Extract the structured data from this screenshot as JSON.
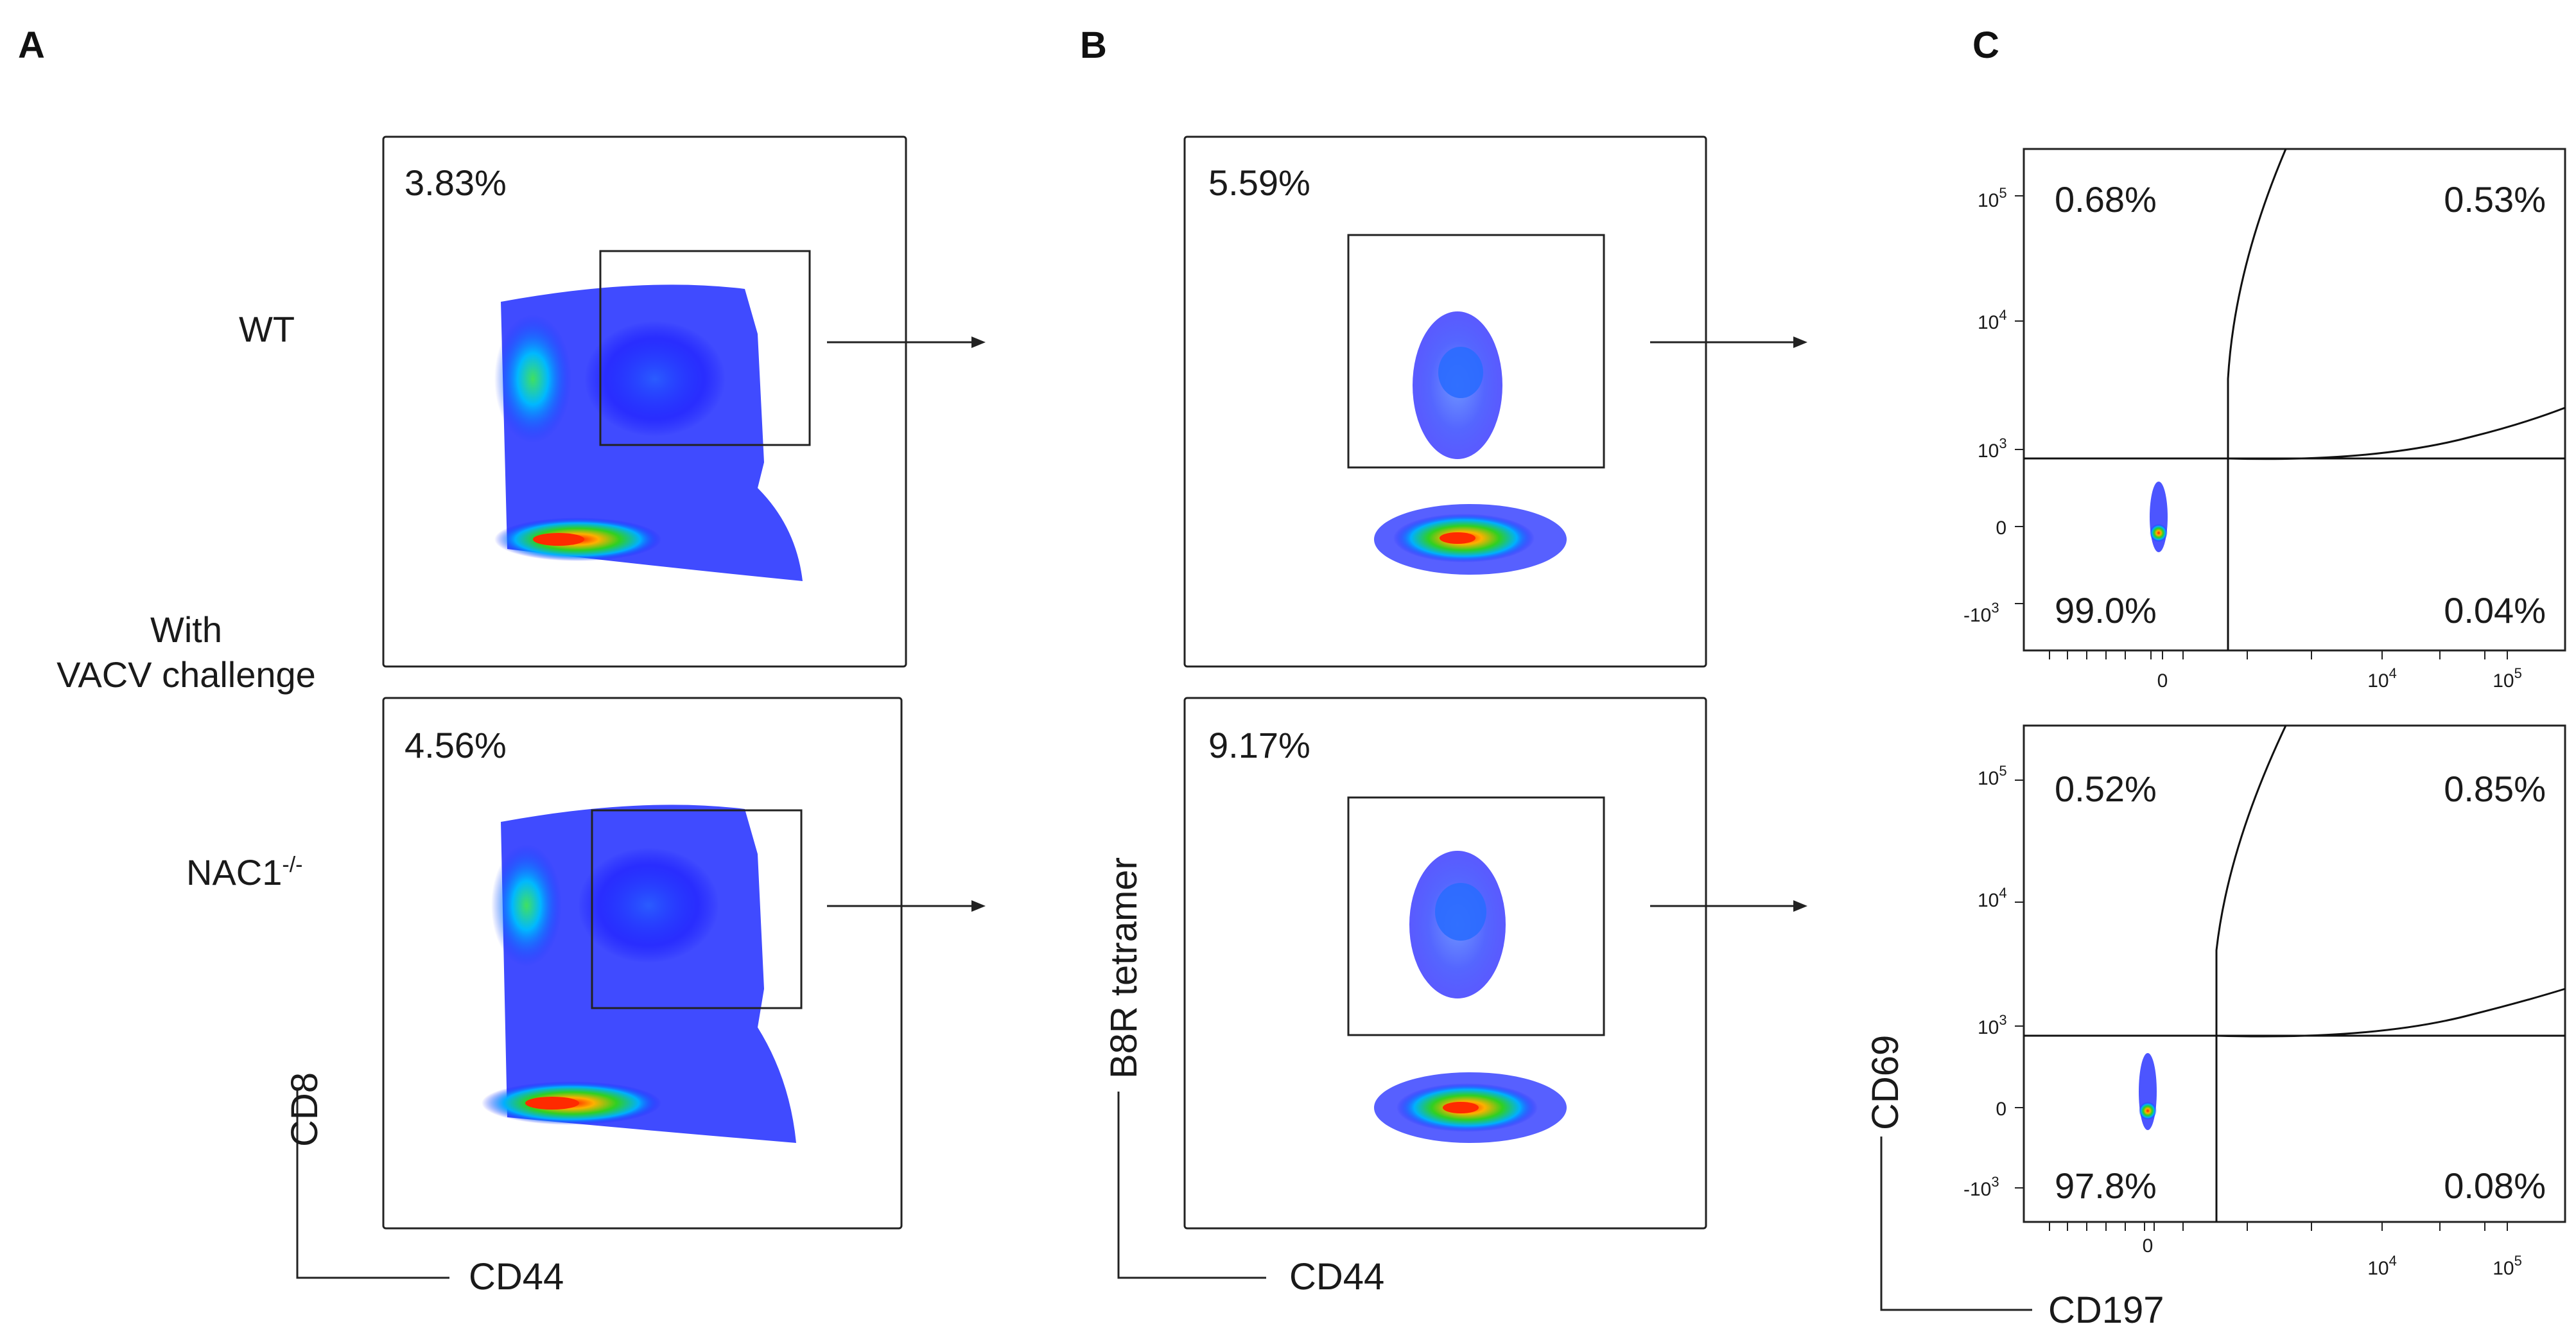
{
  "panel_labels": {
    "a": "A",
    "b": "B",
    "c": "C"
  },
  "rows": {
    "wt": "WT",
    "nac1_base": "NAC1",
    "nac1_sup": "-/-",
    "condition_line1": "With",
    "condition_line2": "VACV challenge"
  },
  "axes": {
    "panel_a": {
      "x": "CD44",
      "y": "CD8"
    },
    "panel_b": {
      "x": "CD44",
      "y": "B8R tetramer"
    },
    "panel_c": {
      "x": "CD197",
      "y": "CD69"
    }
  },
  "ticks_c": {
    "y": {
      "pos5": "10",
      "pos5_exp": "5",
      "pos4": "10",
      "pos4_exp": "4",
      "pos3": "10",
      "pos3_exp": "3",
      "zero": "0",
      "neg3": "-10",
      "neg3_exp": "3"
    },
    "x": {
      "zero": "0",
      "pos4": "10",
      "pos4_exp": "4",
      "pos5": "10",
      "pos5_exp": "5"
    }
  },
  "colors": {
    "density_low": "#1010ff",
    "density_mid": "#00c8ff",
    "density_hi": "#20d020",
    "density_peak": "#ff2000",
    "frame": "#222222"
  },
  "chart_data": [
    {
      "type": "scatter",
      "panel": "A",
      "row": "WT",
      "gate_percent": "3.83%",
      "xlabel": "CD44",
      "ylabel": "CD8"
    },
    {
      "type": "scatter",
      "panel": "A",
      "row": "NAC1-/-",
      "gate_percent": "4.56%",
      "xlabel": "CD44",
      "ylabel": "CD8"
    },
    {
      "type": "scatter",
      "panel": "B",
      "row": "WT",
      "gate_percent": "5.59%",
      "xlabel": "CD44",
      "ylabel": "B8R tetramer"
    },
    {
      "type": "scatter",
      "panel": "B",
      "row": "NAC1-/-",
      "gate_percent": "9.17%",
      "xlabel": "CD44",
      "ylabel": "B8R tetramer"
    },
    {
      "type": "scatter",
      "panel": "C",
      "row": "WT",
      "xlabel": "CD197",
      "ylabel": "CD69",
      "quadrants": {
        "upper_left": "0.68%",
        "upper_right": "0.53%",
        "lower_left": "99.0%",
        "lower_right": "0.04%"
      }
    },
    {
      "type": "scatter",
      "panel": "C",
      "row": "NAC1-/-",
      "xlabel": "CD197",
      "ylabel": "CD69",
      "quadrants": {
        "upper_left": "0.52%",
        "upper_right": "0.85%",
        "lower_left": "97.8%",
        "lower_right": "0.08%"
      }
    }
  ]
}
